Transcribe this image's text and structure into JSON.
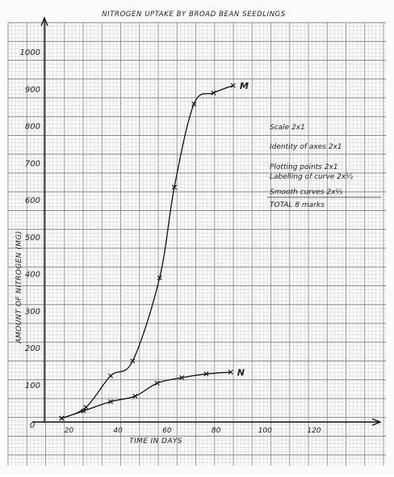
{
  "chart_data": {
    "type": "line",
    "title": "NITROGEN UPTAKE BY BROAD BEAN SEEDLINGS",
    "xlabel": "TIME IN DAYS",
    "ylabel": "AMOUNT OF NITROGEN (MG)",
    "xlim": [
      10,
      146
    ],
    "ylim": [
      0,
      1080
    ],
    "x_tick_labels": [
      "20",
      "40",
      "60",
      "80",
      "100",
      "120"
    ],
    "y_tick_labels": [
      "0",
      "100",
      "200",
      "300",
      "400",
      "500",
      "600",
      "700",
      "800",
      "900",
      "1000"
    ],
    "origin_label": "0",
    "grid": true,
    "series": [
      {
        "name": "M",
        "x": [
          17,
          27,
          37,
          46,
          57,
          63,
          71,
          79,
          87
        ],
        "y": [
          10,
          40,
          125,
          165,
          390,
          635,
          860,
          890,
          910
        ]
      },
      {
        "name": "N",
        "x": [
          17,
          26,
          37,
          47,
          56,
          66,
          76,
          86
        ],
        "y": [
          10,
          30,
          55,
          70,
          105,
          120,
          130,
          135
        ]
      }
    ],
    "marking_scheme": [
      "Scale 2x1",
      "Identity of axes 2x1",
      "Plotting points 2x1",
      "Labelling of curve 2x½",
      "Smooth curves 2x½",
      "TOTAL    8 marks"
    ]
  }
}
